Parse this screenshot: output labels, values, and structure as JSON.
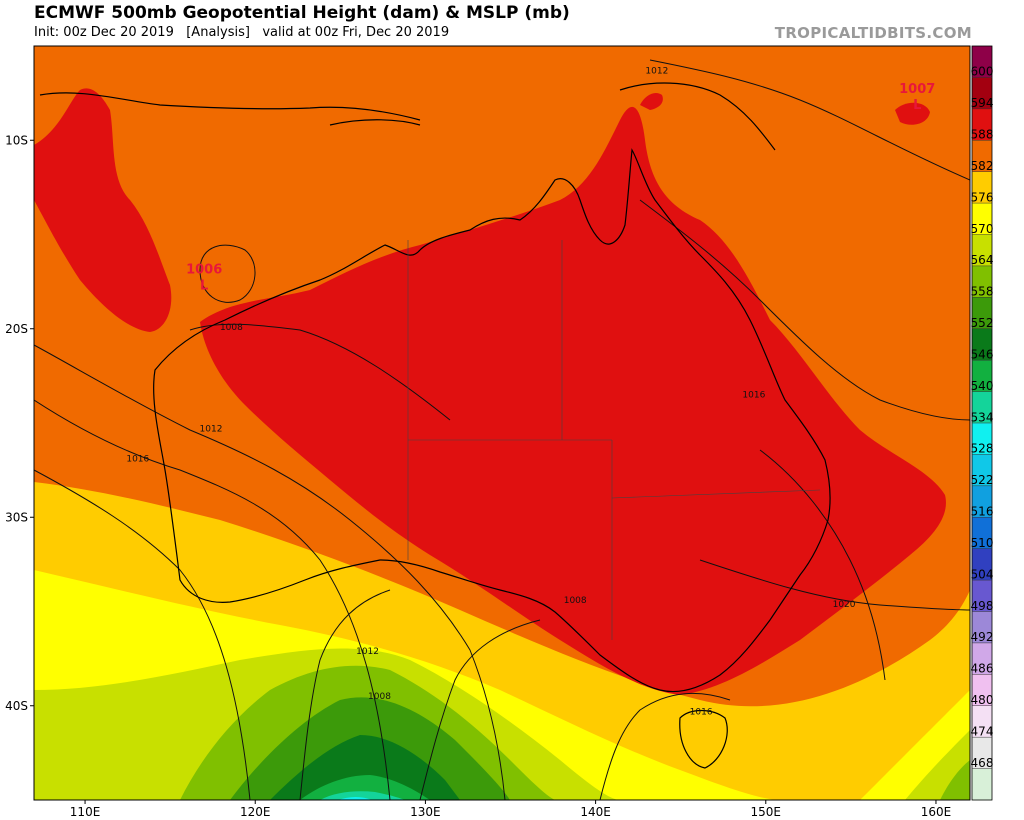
{
  "header": {
    "title": "ECMWF 500mb Geopotential Height (dam) & MSLP (mb)",
    "subtitle": "Init: 00z Dec 20 2019   [Analysis]   valid at 00z Fri, Dec 20 2019",
    "brand": "TROPICALTIDBITS.COM"
  },
  "axes": {
    "lat_labels": [
      "10S",
      "20S",
      "30S",
      "40S"
    ],
    "lat_values": [
      -10,
      -20,
      -30,
      -40
    ],
    "lon_labels": [
      "110E",
      "120E",
      "130E",
      "140E",
      "150E",
      "160E"
    ],
    "lon_values": [
      110,
      120,
      130,
      140,
      150,
      160
    ],
    "lon_range": [
      107,
      162
    ],
    "lat_range": [
      -5,
      -45
    ]
  },
  "colorbar": {
    "ticks": [
      "600",
      "594",
      "588",
      "582",
      "576",
      "570",
      "564",
      "558",
      "552",
      "546",
      "540",
      "534",
      "528",
      "522",
      "516",
      "510",
      "504",
      "498",
      "492",
      "486",
      "480",
      "474",
      "468"
    ],
    "colors": [
      "#8e0048",
      "#a30010",
      "#e01010",
      "#f06a00",
      "#ffcc00",
      "#ffff00",
      "#c8e000",
      "#80c000",
      "#3c9a0a",
      "#0a7a1a",
      "#12b040",
      "#14d49a",
      "#10f0f0",
      "#10c8e8",
      "#10a0e0",
      "#1070d8",
      "#3040c0",
      "#6858d0",
      "#9c88d8",
      "#d0a8e8",
      "#f0c0f0",
      "#f4e0f4",
      "#e8e8e8",
      "#d8f0d8"
    ]
  },
  "isobars": {
    "labels": [
      {
        "text": "1012",
        "lon": 143.6,
        "lat": -6.4
      },
      {
        "text": "1008",
        "lon": 118.6,
        "lat": -20.0
      },
      {
        "text": "1012",
        "lon": 117.4,
        "lat": -25.4
      },
      {
        "text": "1016",
        "lon": 113.1,
        "lat": -27.0
      },
      {
        "text": "1016",
        "lon": 149.3,
        "lat": -23.6
      },
      {
        "text": "1008",
        "lon": 138.8,
        "lat": -34.5
      },
      {
        "text": "1020",
        "lon": 154.6,
        "lat": -34.7
      },
      {
        "text": "1012",
        "lon": 126.6,
        "lat": -37.2
      },
      {
        "text": "1008",
        "lon": 127.3,
        "lat": -39.6
      },
      {
        "text": "1016",
        "lon": 146.2,
        "lat": -40.4
      }
    ]
  },
  "lows": [
    {
      "pressure": "1006",
      "symbol": "L",
      "lon": 117.0,
      "lat": -17.4
    },
    {
      "pressure": "1007",
      "symbol": "L",
      "lon": 158.9,
      "lat": -7.8
    }
  ]
}
